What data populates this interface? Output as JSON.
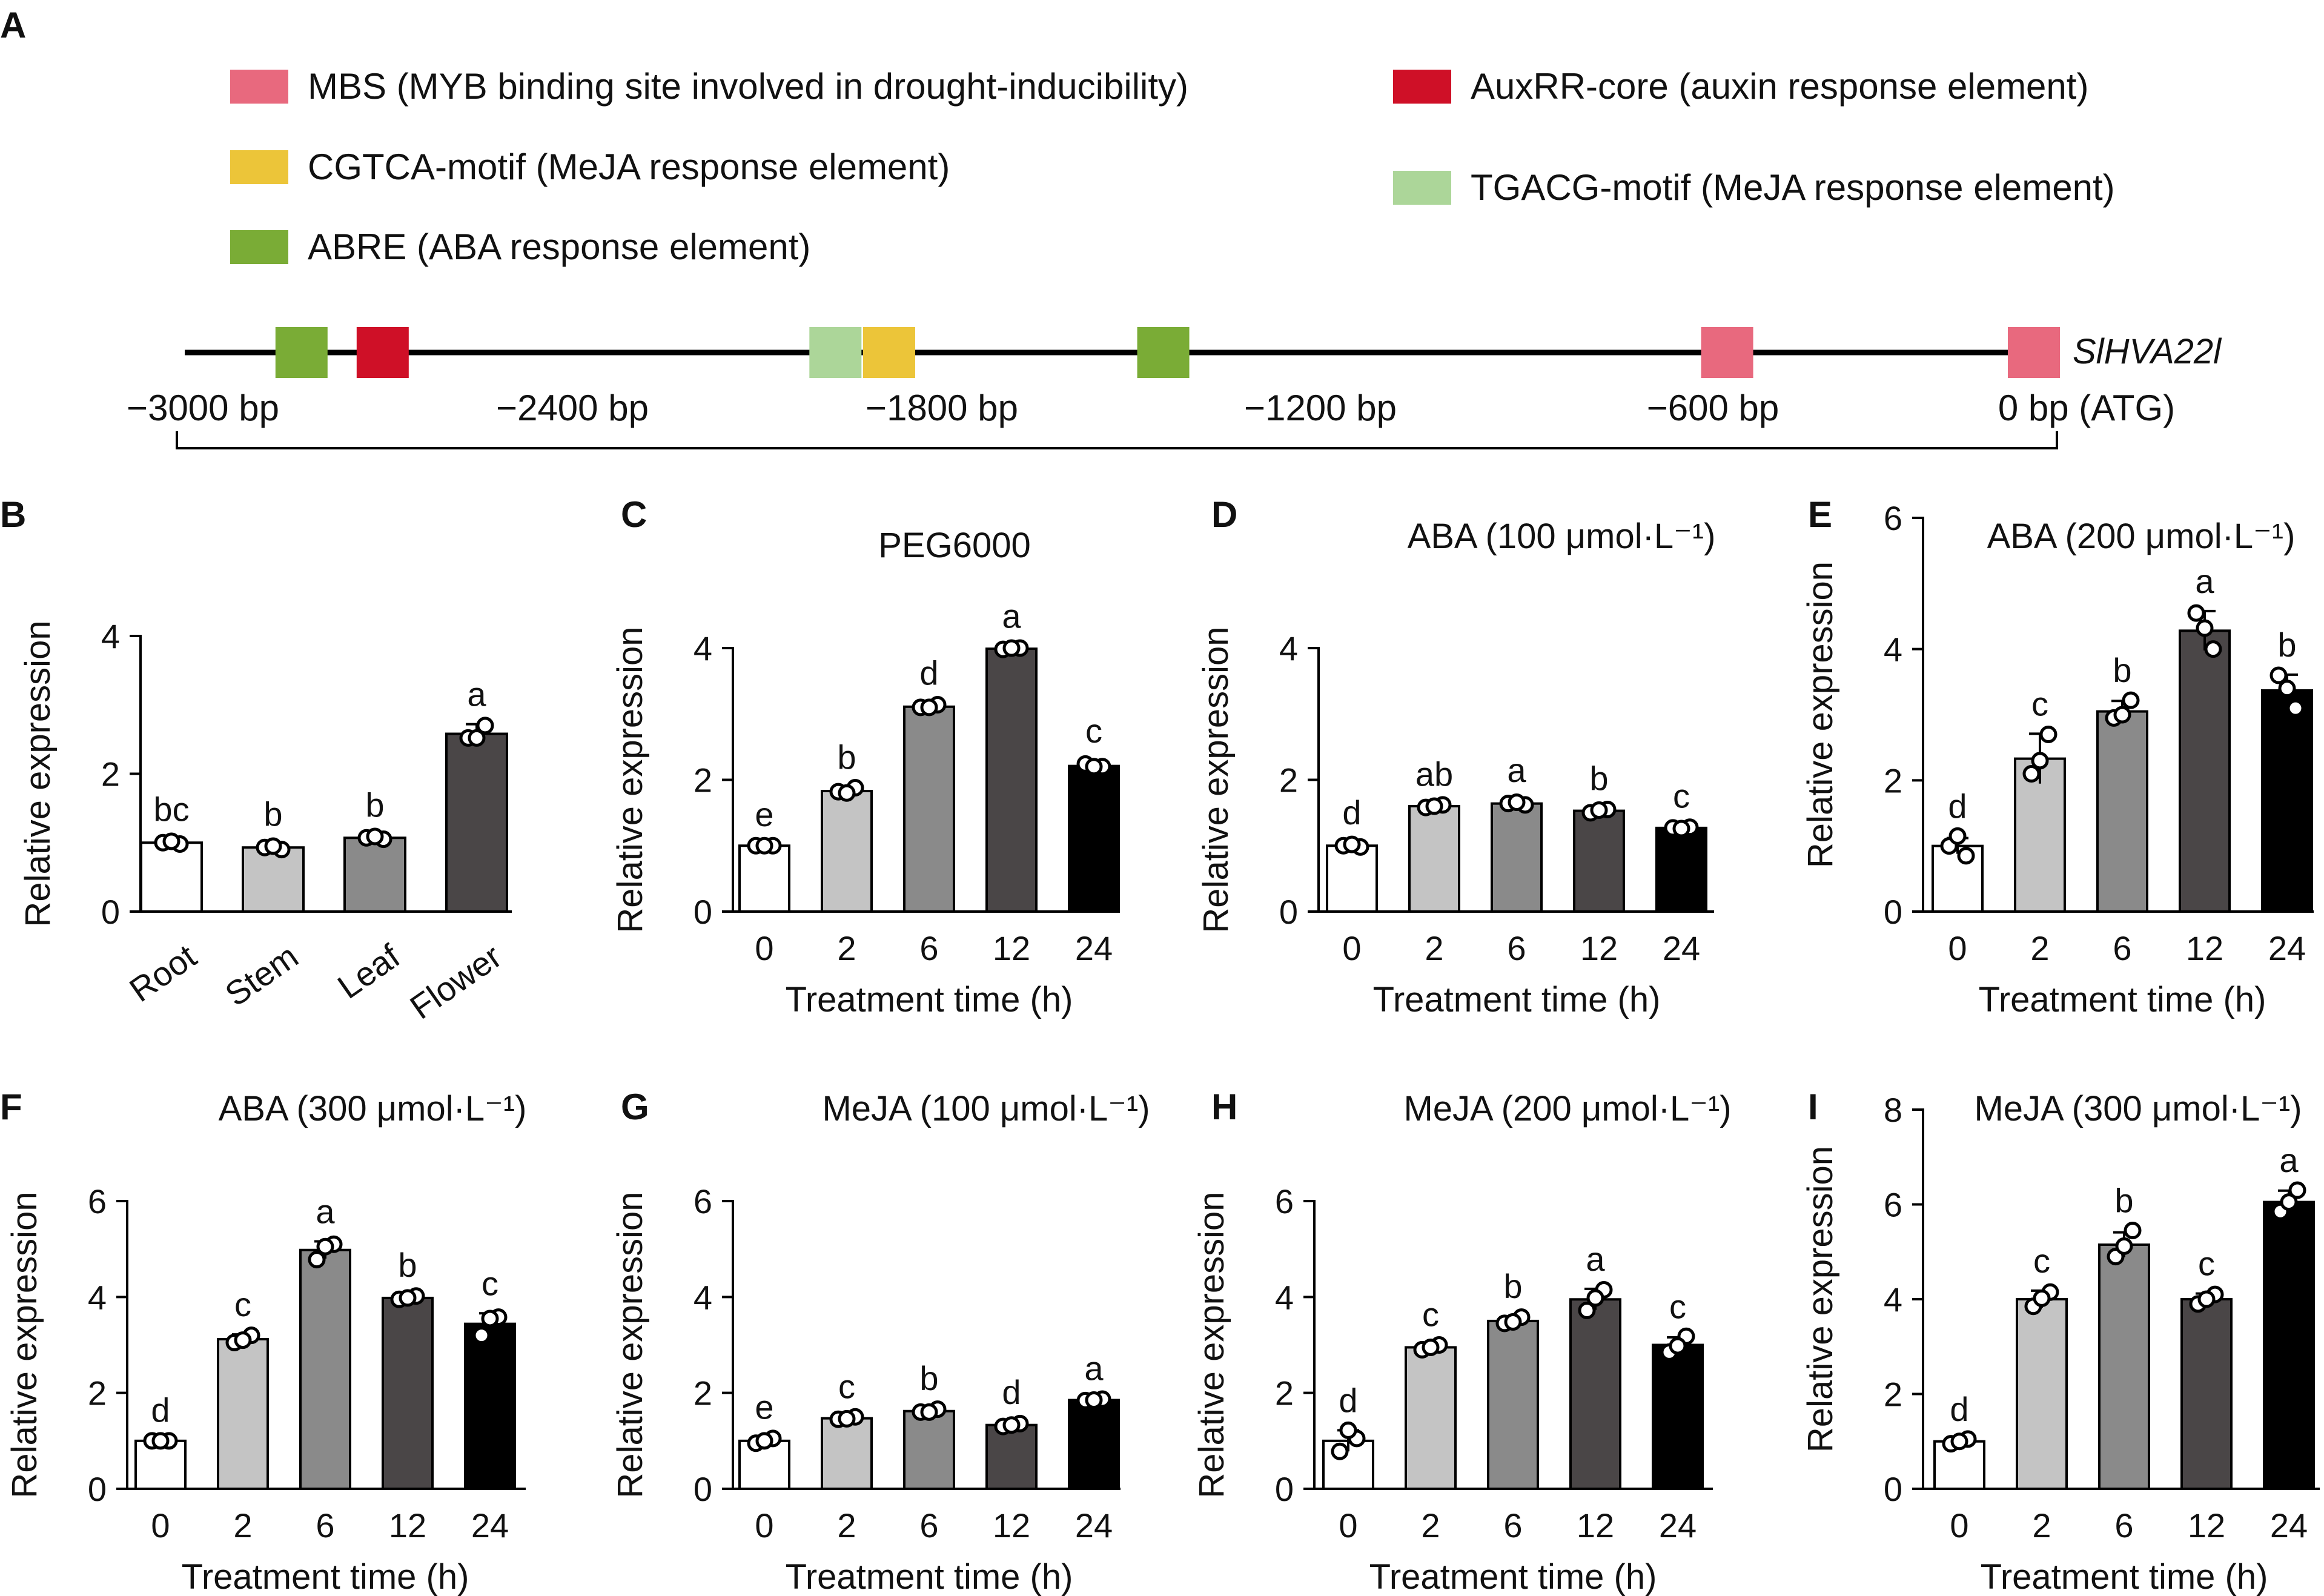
{
  "panel_a": {
    "letter": "A",
    "legend": [
      {
        "label": "MBS (MYB binding site involved in drought-inducibility)",
        "color": "#e8697e"
      },
      {
        "label": "CGTCA-motif (MeJA response element)",
        "color": "#ecc539"
      },
      {
        "label": "ABRE (ABA response element)",
        "color": "#7aac36"
      },
      {
        "label": "AuxRR-core (auxin response element)",
        "color": "#cf1027"
      },
      {
        "label": "TGACG-motif (MeJA response element)",
        "color": "#acd699"
      }
    ],
    "gene": "SlHVA22l",
    "positions": [
      "−3000 bp",
      "−2400 bp",
      "−1800 bp",
      "−1200 bp",
      "−600 bp",
      "0 bp (ATG)"
    ],
    "position_values": [
      -3000,
      -2400,
      -1800,
      -1200,
      -600,
      0
    ],
    "elements": [
      {
        "type": "ABRE",
        "position": -2813
      },
      {
        "type": "AuxRR-core",
        "position": -2683
      },
      {
        "type": "TGACG-motif",
        "position": -1958
      },
      {
        "type": "CGTCA-motif",
        "position": -1872
      },
      {
        "type": "ABRE",
        "position": -1433
      },
      {
        "type": "MBS",
        "position": -530
      },
      {
        "type": "MBS",
        "position": 0
      }
    ]
  },
  "chart_data": [
    {
      "letter": "B",
      "type": "bar",
      "title": "",
      "ylabel": "Relative expression",
      "xlabel": "",
      "ylim": [
        0,
        4
      ],
      "yticks": [
        0,
        2,
        4
      ],
      "categories": [
        "Root",
        "Stem",
        "Leaf",
        "Flower"
      ],
      "values": [
        1.0,
        0.93,
        1.07,
        2.58
      ],
      "errors": [
        0.05,
        0.05,
        0.04,
        0.14
      ],
      "sig": [
        "bc",
        "b",
        "b",
        "a"
      ],
      "points": [
        [
          1.0,
          0.98,
          1.02
        ],
        [
          0.93,
          0.9,
          0.95
        ],
        [
          1.07,
          1.05,
          1.09
        ],
        [
          2.52,
          2.7,
          2.52
        ]
      ],
      "colors": [
        "#ffffff",
        "#c4c4c4",
        "#8a8a8a",
        "#4a4647"
      ]
    },
    {
      "letter": "C",
      "type": "bar",
      "title": "PEG6000",
      "ylabel": "Relative expression",
      "xlabel": "Treatment time (h)",
      "ylim": [
        0,
        4
      ],
      "yticks": [
        0,
        2,
        4
      ],
      "categories": [
        "0",
        "2",
        "6",
        "12",
        "24"
      ],
      "values": [
        1.0,
        1.83,
        3.11,
        3.99,
        2.21
      ],
      "errors": [
        0.02,
        0.06,
        0.06,
        0.04,
        0.08
      ],
      "sig": [
        "e",
        "b",
        "d",
        "a",
        "c"
      ],
      "points": [
        [
          1.0,
          1.0,
          1.0
        ],
        [
          1.82,
          1.88,
          1.8
        ],
        [
          3.1,
          3.14,
          3.1
        ],
        [
          3.98,
          4.0,
          4.0
        ],
        [
          2.24,
          2.2,
          2.2
        ]
      ],
      "colors": [
        "#ffffff",
        "#c4c4c4",
        "#8a8a8a",
        "#4a4647",
        "#000000"
      ]
    },
    {
      "letter": "D",
      "type": "bar",
      "title": "ABA (100 μmol·L⁻¹)",
      "ylabel": "Relative expression",
      "xlabel": "Treatment time (h)",
      "ylim": [
        0,
        4
      ],
      "yticks": [
        0,
        2,
        4
      ],
      "categories": [
        "0",
        "2",
        "6",
        "12",
        "24"
      ],
      "values": [
        1.0,
        1.6,
        1.64,
        1.53,
        1.27
      ],
      "errors": [
        0.05,
        0.03,
        0.05,
        0.04,
        0.03
      ],
      "sig": [
        "d",
        "ab",
        "a",
        "b",
        "c"
      ],
      "points": [
        [
          1.0,
          0.98,
          1.02
        ],
        [
          1.58,
          1.62,
          1.6
        ],
        [
          1.64,
          1.62,
          1.66
        ],
        [
          1.5,
          1.55,
          1.54
        ],
        [
          1.27,
          1.28,
          1.26
        ]
      ],
      "colors": [
        "#ffffff",
        "#c4c4c4",
        "#8a8a8a",
        "#4a4647",
        "#000000"
      ]
    },
    {
      "letter": "E",
      "type": "bar",
      "title": "ABA (200 μmol·L⁻¹)",
      "ylabel": "Relative expression",
      "xlabel": "Treatment time (h)",
      "ylim": [
        0,
        6
      ],
      "yticks": [
        0,
        2,
        4,
        6
      ],
      "categories": [
        "0",
        "2",
        "6",
        "12",
        "24"
      ],
      "values": [
        1.0,
        2.33,
        3.05,
        4.28,
        3.37
      ],
      "errors": [
        0.12,
        0.38,
        0.16,
        0.3,
        0.24
      ],
      "sig": [
        "d",
        "c",
        "b",
        "a",
        "b"
      ],
      "points": [
        [
          1.0,
          0.85,
          1.15
        ],
        [
          2.1,
          2.7,
          2.3
        ],
        [
          2.95,
          3.22,
          3.0
        ],
        [
          4.55,
          4.0,
          4.32
        ],
        [
          3.6,
          3.1,
          3.4
        ]
      ],
      "colors": [
        "#ffffff",
        "#c4c4c4",
        "#8a8a8a",
        "#4a4647",
        "#000000"
      ]
    },
    {
      "letter": "F",
      "type": "bar",
      "title": "ABA (300 μmol·L⁻¹)",
      "ylabel": "Relative expression",
      "xlabel": "Treatment time (h)",
      "ylim": [
        0,
        6
      ],
      "yticks": [
        0,
        2,
        4,
        6
      ],
      "categories": [
        "0",
        "2",
        "6",
        "12",
        "24"
      ],
      "values": [
        1.0,
        3.12,
        4.98,
        3.98,
        3.44
      ],
      "errors": [
        0.02,
        0.1,
        0.18,
        0.06,
        0.22
      ],
      "sig": [
        "d",
        "c",
        "a",
        "b",
        "c"
      ],
      "points": [
        [
          1.0,
          1.0,
          1.0
        ],
        [
          3.05,
          3.2,
          3.1
        ],
        [
          4.78,
          5.1,
          5.05
        ],
        [
          3.95,
          4.02,
          3.98
        ],
        [
          3.2,
          3.58,
          3.55
        ]
      ],
      "colors": [
        "#ffffff",
        "#c4c4c4",
        "#8a8a8a",
        "#4a4647",
        "#000000"
      ]
    },
    {
      "letter": "G",
      "type": "bar",
      "title": "MeJA (100 μmol·L⁻¹)",
      "ylabel": "Relative expression",
      "xlabel": "Treatment time (h)",
      "ylim": [
        0,
        6
      ],
      "yticks": [
        0,
        2,
        4,
        6
      ],
      "categories": [
        "0",
        "2",
        "6",
        "12",
        "24"
      ],
      "values": [
        1.0,
        1.47,
        1.62,
        1.33,
        1.85
      ],
      "errors": [
        0.08,
        0.04,
        0.06,
        0.06,
        0.04
      ],
      "sig": [
        "e",
        "c",
        "b",
        "d",
        "a"
      ],
      "points": [
        [
          0.95,
          1.05,
          1.0
        ],
        [
          1.45,
          1.5,
          1.46
        ],
        [
          1.6,
          1.66,
          1.6
        ],
        [
          1.3,
          1.36,
          1.33
        ],
        [
          1.84,
          1.87,
          1.85
        ]
      ],
      "colors": [
        "#ffffff",
        "#c4c4c4",
        "#8a8a8a",
        "#4a4647",
        "#000000"
      ]
    },
    {
      "letter": "H",
      "type": "bar",
      "title": "MeJA (200 μmol·L⁻¹)",
      "ylabel": "Relative expression",
      "xlabel": "Treatment time (h)",
      "ylim": [
        0,
        6
      ],
      "yticks": [
        0,
        2,
        4,
        6
      ],
      "categories": [
        "0",
        "2",
        "6",
        "12",
        "24"
      ],
      "values": [
        1.0,
        2.95,
        3.5,
        3.95,
        3.0
      ],
      "errors": [
        0.22,
        0.06,
        0.1,
        0.22,
        0.16
      ],
      "sig": [
        "d",
        "c",
        "b",
        "a",
        "c"
      ],
      "points": [
        [
          0.78,
          1.05,
          1.22
        ],
        [
          2.9,
          3.0,
          2.95
        ],
        [
          3.45,
          3.58,
          3.48
        ],
        [
          3.72,
          4.15,
          3.98
        ],
        [
          2.85,
          3.18,
          2.98
        ]
      ],
      "colors": [
        "#ffffff",
        "#c4c4c4",
        "#8a8a8a",
        "#4a4647",
        "#000000"
      ]
    },
    {
      "letter": "I",
      "type": "bar",
      "title": "MeJA (300 μmol·L⁻¹)",
      "ylabel": "Relative expression",
      "xlabel": "Treatment time (h)",
      "ylim": [
        0,
        8
      ],
      "yticks": [
        0,
        2,
        4,
        6,
        8
      ],
      "categories": [
        "0",
        "2",
        "6",
        "12",
        "24"
      ],
      "values": [
        1.0,
        4.0,
        5.15,
        4.0,
        6.05
      ],
      "errors": [
        0.05,
        0.18,
        0.26,
        0.12,
        0.24
      ],
      "sig": [
        "d",
        "c",
        "b",
        "c",
        "a"
      ],
      "points": [
        [
          0.95,
          1.05,
          1.0
        ],
        [
          3.85,
          4.15,
          4.02
        ],
        [
          4.9,
          5.45,
          5.12
        ],
        [
          3.9,
          4.1,
          4.0
        ],
        [
          5.85,
          6.3,
          6.05
        ]
      ],
      "colors": [
        "#ffffff",
        "#c4c4c4",
        "#8a8a8a",
        "#4a4647",
        "#000000"
      ]
    }
  ]
}
